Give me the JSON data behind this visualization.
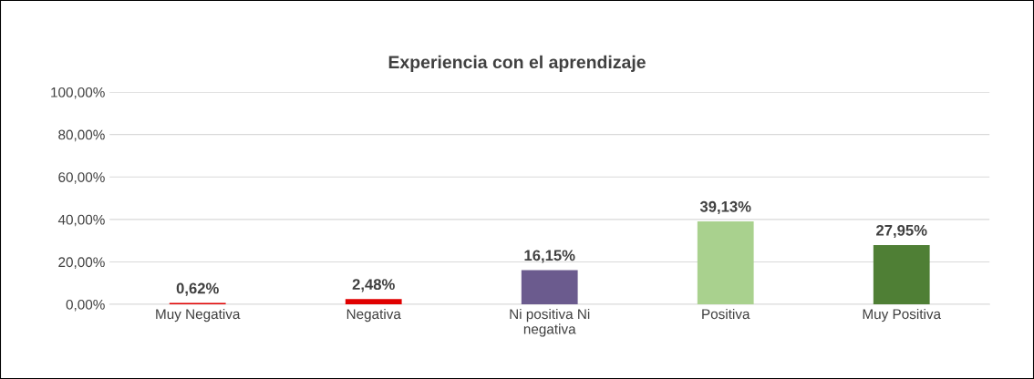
{
  "chart_data": {
    "type": "bar",
    "title": "Experiencia con el aprendizaje",
    "categories": [
      "Muy Negativa",
      "Negativa",
      "Ni positiva Ni\nnegativa",
      "Positiva",
      "Muy Positiva"
    ],
    "values": [
      0.62,
      2.48,
      16.15,
      39.13,
      27.95
    ],
    "colors": [
      "#e00000",
      "#e00000",
      "#6b5b8e",
      "#a9d18e",
      "#4f7f35"
    ],
    "value_labels": [
      "0,62%",
      "2,48%",
      "16,15%",
      "39,13%",
      "27,95%"
    ],
    "ylim": [
      0,
      100
    ],
    "yticks": [
      {
        "value": 0,
        "label": "0,00%"
      },
      {
        "value": 20,
        "label": "20,00%"
      },
      {
        "value": 40,
        "label": "40,00%"
      },
      {
        "value": 60,
        "label": "60,00%"
      },
      {
        "value": 80,
        "label": "80,00%"
      },
      {
        "value": 100,
        "label": "100,00%"
      }
    ],
    "grid": "y",
    "legend": false
  }
}
